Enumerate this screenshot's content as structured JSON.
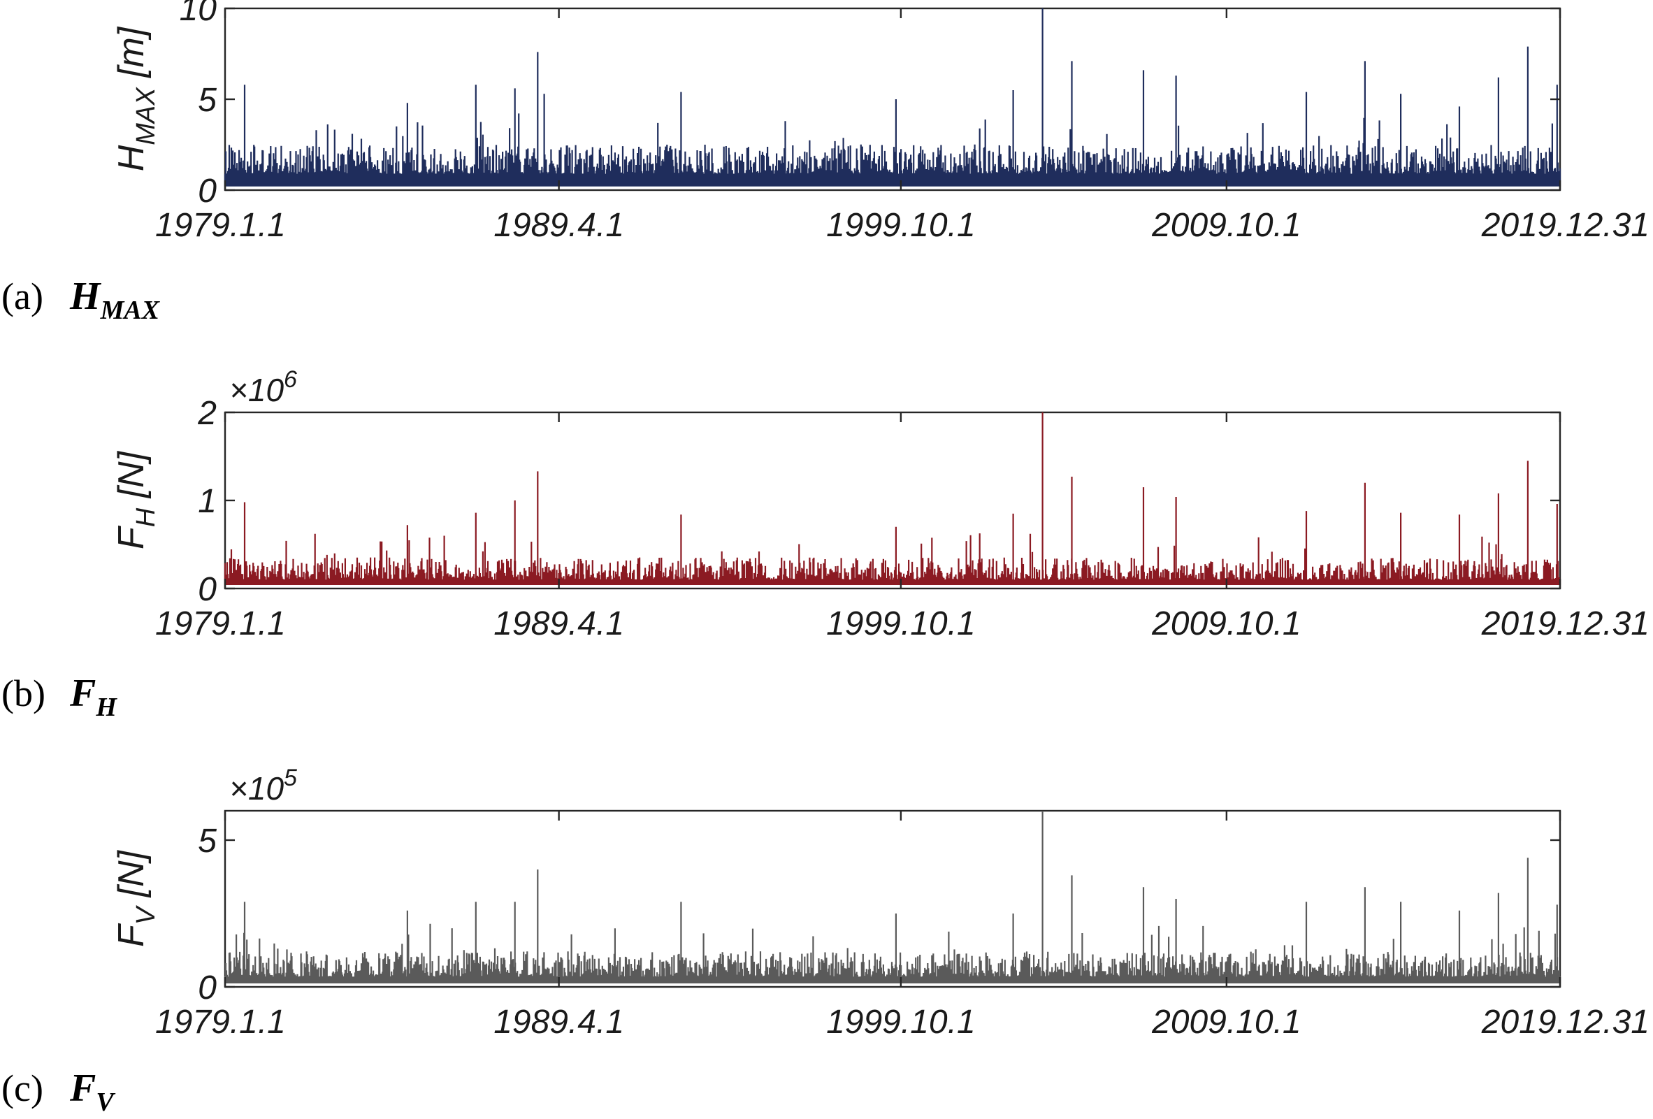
{
  "chart_data": [
    {
      "type": "line",
      "panel_label": "(a)",
      "caption_symbol": "H",
      "caption_subscript": "MAX",
      "ylabel_symbol": "H",
      "ylabel_subscript": "MAX",
      "ylabel_unit": "[m]",
      "exponent_base": "",
      "exponent_power": "",
      "color": "#1f2d5c",
      "ylim": [
        0,
        10
      ],
      "yticks": [
        "0",
        "5",
        "10"
      ],
      "ytick_values": [
        0,
        5,
        10
      ],
      "xticks": [
        "1979.1.1",
        "1989.4.1",
        "1999.10.1",
        "2009.10.1",
        "2019.12.31"
      ],
      "xtick_years": [
        1979.0,
        1989.25,
        1999.75,
        2009.75,
        2019.99
      ],
      "xlim": [
        1979.0,
        2019.99
      ],
      "baseline": 0.9,
      "noise": 1.4,
      "peaks": [
        [
          1979.6,
          5.8
        ],
        [
          1981.8,
          3.3
        ],
        [
          1984.6,
          4.8
        ],
        [
          1986.7,
          5.8
        ],
        [
          1987.9,
          5.6
        ],
        [
          1988.6,
          7.6
        ],
        [
          1988.8,
          5.3
        ],
        [
          1993.0,
          5.4
        ],
        [
          1996.2,
          3.8
        ],
        [
          1999.6,
          5.0
        ],
        [
          2003.2,
          5.5
        ],
        [
          2004.1,
          10.5
        ],
        [
          2005.0,
          7.1
        ],
        [
          2007.2,
          6.6
        ],
        [
          2008.2,
          6.3
        ],
        [
          2012.2,
          5.4
        ],
        [
          2014.0,
          7.1
        ],
        [
          2015.1,
          5.3
        ],
        [
          2016.9,
          4.6
        ],
        [
          2018.1,
          6.2
        ],
        [
          2019.0,
          7.9
        ],
        [
          2019.9,
          5.8
        ]
      ]
    },
    {
      "type": "line",
      "panel_label": "(b)",
      "caption_symbol": "F",
      "caption_subscript": "H",
      "ylabel_symbol": "F",
      "ylabel_subscript": "H",
      "ylabel_unit": "[N]",
      "exponent_base": "×10",
      "exponent_power": "6",
      "color": "#8b1a22",
      "ylim": [
        0,
        2
      ],
      "yticks": [
        "0",
        "1",
        "2"
      ],
      "ytick_values": [
        0,
        1,
        2
      ],
      "xticks": [
        "1979.1.1",
        "1989.4.1",
        "1999.10.1",
        "2009.10.1",
        "2019.12.31"
      ],
      "xtick_years": [
        1979.0,
        1989.25,
        1999.75,
        2009.75,
        2019.99
      ],
      "xlim": [
        1979.0,
        2019.99
      ],
      "baseline": 0.1,
      "noise": 0.22,
      "peaks": [
        [
          1979.6,
          0.98
        ],
        [
          1984.6,
          0.72
        ],
        [
          1986.7,
          0.86
        ],
        [
          1987.9,
          1.0
        ],
        [
          1988.6,
          1.33
        ],
        [
          1993.0,
          0.84
        ],
        [
          1999.6,
          0.7
        ],
        [
          2003.2,
          0.85
        ],
        [
          2004.1,
          2.0
        ],
        [
          2005.0,
          1.27
        ],
        [
          2007.2,
          1.15
        ],
        [
          2008.2,
          1.04
        ],
        [
          2012.2,
          0.88
        ],
        [
          2014.0,
          1.2
        ],
        [
          2015.1,
          0.86
        ],
        [
          2016.9,
          0.84
        ],
        [
          2018.1,
          1.08
        ],
        [
          2019.0,
          1.45
        ],
        [
          2019.9,
          0.96
        ]
      ]
    },
    {
      "type": "line",
      "panel_label": "(c)",
      "caption_symbol": "F",
      "caption_subscript": "V",
      "ylabel_symbol": "F",
      "ylabel_subscript": "V",
      "ylabel_unit": "[N]",
      "exponent_base": "×10",
      "exponent_power": "5",
      "color": "#5a5a5a",
      "ylim": [
        0,
        6
      ],
      "yticks": [
        "0",
        "5"
      ],
      "ytick_values": [
        0,
        5
      ],
      "xticks": [
        "1979.1.1",
        "1989.4.1",
        "1999.10.1",
        "2009.10.1",
        "2019.12.31"
      ],
      "xtick_years": [
        1979.0,
        1989.25,
        1999.75,
        2009.75,
        2019.99
      ],
      "xlim": [
        1979.0,
        2019.99
      ],
      "baseline": 0.35,
      "noise": 0.75,
      "peaks": [
        [
          1979.6,
          2.9
        ],
        [
          1984.6,
          2.6
        ],
        [
          1986.7,
          2.9
        ],
        [
          1987.9,
          2.9
        ],
        [
          1988.6,
          4.0
        ],
        [
          1993.0,
          2.9
        ],
        [
          1999.6,
          2.5
        ],
        [
          2003.2,
          2.5
        ],
        [
          2004.1,
          6.0
        ],
        [
          2005.0,
          3.8
        ],
        [
          2007.2,
          3.4
        ],
        [
          2008.2,
          3.0
        ],
        [
          2012.2,
          2.9
        ],
        [
          2014.0,
          3.4
        ],
        [
          2015.1,
          2.9
        ],
        [
          2016.9,
          2.6
        ],
        [
          2018.1,
          3.2
        ],
        [
          2019.0,
          4.4
        ],
        [
          2019.9,
          2.8
        ]
      ]
    }
  ]
}
